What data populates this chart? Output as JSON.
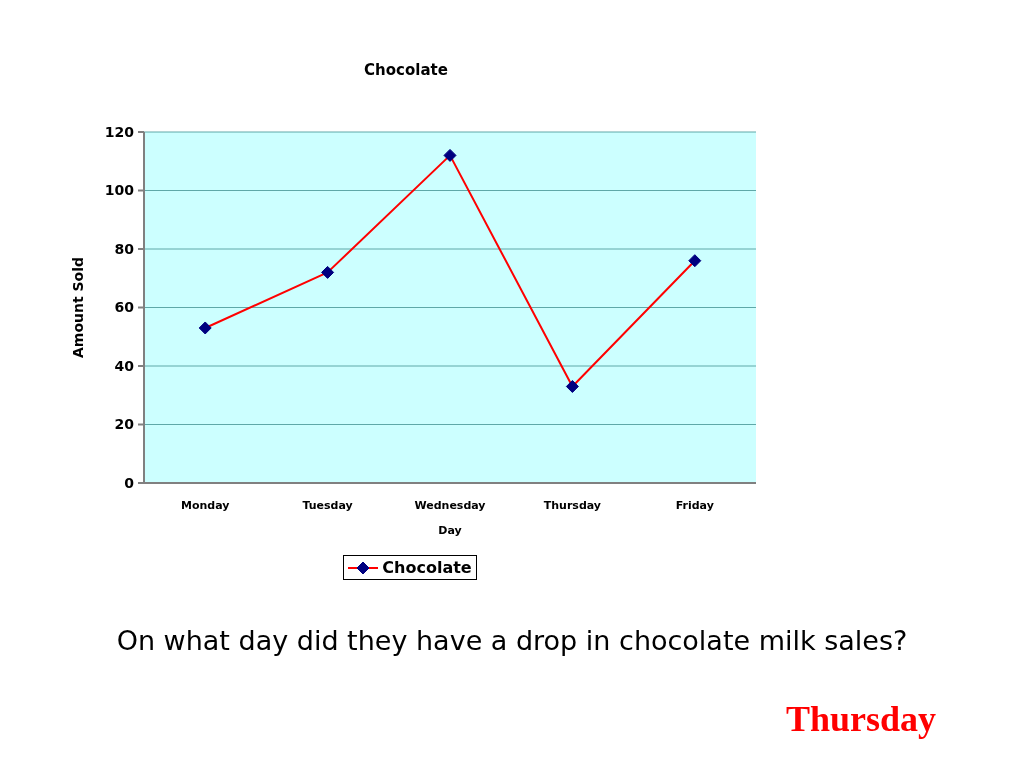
{
  "chart_data": {
    "type": "line",
    "title": "Chocolate",
    "xlabel": "Day",
    "ylabel": "Amount Sold",
    "categories": [
      "Monday",
      "Tuesday",
      "Wednesday",
      "Thursday",
      "Friday"
    ],
    "series": [
      {
        "name": "Chocolate",
        "color": "#ff0000",
        "values": [
          53,
          72,
          112,
          33,
          76
        ]
      }
    ],
    "ylim": [
      0,
      120
    ],
    "yticks": [
      0,
      20,
      40,
      60,
      80,
      100,
      120
    ],
    "grid": "y",
    "legend": "bottom",
    "marker": "diamond",
    "line_style": "solid",
    "annotations": [
      "On what day did they have a drop in chocolate milk sales?",
      "Thursday"
    ]
  }
}
